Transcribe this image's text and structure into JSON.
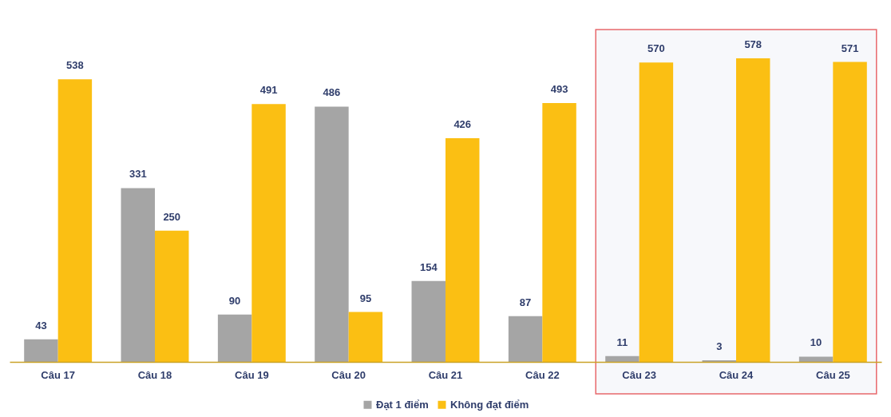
{
  "chart_data": {
    "type": "bar",
    "categories": [
      "Câu 17",
      "Câu 18",
      "Câu 19",
      "Câu 20",
      "Câu 21",
      "Câu 22",
      "Câu 23",
      "Câu 24",
      "Câu 25"
    ],
    "series": [
      {
        "name": "Đạt 1 điểm",
        "color": "#a5a5a5",
        "values": [
          43,
          331,
          90,
          486,
          154,
          87,
          11,
          3,
          10
        ]
      },
      {
        "name": "Không đạt điểm",
        "color": "#fbbf13",
        "values": [
          538,
          250,
          491,
          95,
          426,
          493,
          570,
          578,
          571
        ]
      }
    ],
    "bands": [
      {
        "axis": "x",
        "from": "Câu 23",
        "to": "Câu 25",
        "color": "#f7f8fb"
      }
    ],
    "data_labels": true,
    "tick_labels": "x",
    "grid": false,
    "legend": "bottom"
  }
}
